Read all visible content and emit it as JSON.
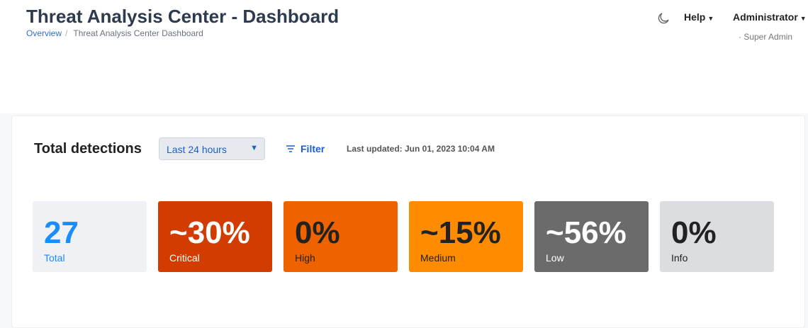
{
  "header": {
    "title": "Threat Analysis Center - Dashboard",
    "breadcrumb": [
      "Overview",
      "Threat Analysis Center Dashboard"
    ],
    "theme_icon": "moon-icon",
    "help": "Help",
    "user": "Administrator",
    "role": "· Super Admin"
  },
  "panel": {
    "title": "Total detections",
    "range": "Last 24 hours",
    "filter": "Filter",
    "updated": "Last updated: Jun 01, 2023 10:04 AM"
  },
  "cards": [
    {
      "value": "27",
      "label": "Total",
      "bg": "#eff1f5",
      "fg": "#1a8cff"
    },
    {
      "value": "~30%",
      "label": "Critical",
      "bg": "#d33c00",
      "fg": "#ffffff"
    },
    {
      "value": "0%",
      "label": "High",
      "bg": "#ee6300",
      "fg": "#222222"
    },
    {
      "value": "~15%",
      "label": "Medium",
      "bg": "#ff8c00",
      "fg": "#222222"
    },
    {
      "value": "~56%",
      "label": "Low",
      "bg": "#6b6b6b",
      "fg": "#ffffff"
    },
    {
      "value": "0%",
      "label": "Info",
      "bg": "#dcdde1",
      "fg": "#222222"
    }
  ]
}
